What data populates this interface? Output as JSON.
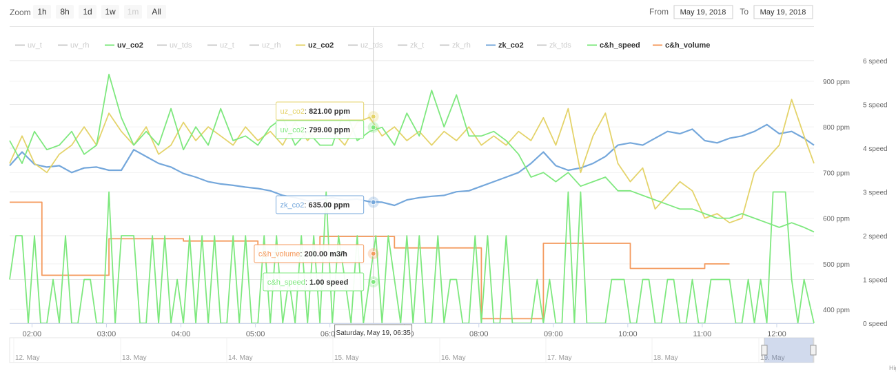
{
  "toolbar": {
    "zoom_label": "Zoom",
    "zoom_buttons": [
      {
        "label": "1h",
        "disabled": false
      },
      {
        "label": "8h",
        "disabled": false
      },
      {
        "label": "1d",
        "disabled": false
      },
      {
        "label": "1w",
        "disabled": false
      },
      {
        "label": "1m",
        "disabled": true
      },
      {
        "label": "All",
        "disabled": false
      }
    ],
    "from_label": "From",
    "from_value": "May 19, 2018",
    "to_label": "To",
    "to_value": "May 19, 2018"
  },
  "credits": "Hig",
  "chart_data": {
    "type": "line",
    "legend_position": "top",
    "grid": true,
    "x_range": [
      "01:42",
      "12:30"
    ],
    "x_ticks": [
      "02:00",
      "03:00",
      "04:00",
      "05:00",
      "06:00",
      "07:00",
      "08:00",
      "09:00",
      "10:00",
      "11:00",
      "12:00"
    ],
    "y_axis_ppm": {
      "range": [
        370,
        945
      ],
      "ticks": [
        "400 ppm",
        "500 ppm",
        "600 ppm",
        "700 ppm",
        "800 ppm",
        "900 ppm"
      ],
      "tick_values": [
        400,
        500,
        600,
        700,
        800,
        900
      ]
    },
    "y_axis_speed": {
      "range": [
        0,
        6
      ],
      "ticks": [
        "0 speed",
        "1 speed",
        "2 speed",
        "3 speed",
        "4 speed",
        "5 speed",
        "6 speed"
      ],
      "tick_values": [
        0,
        1,
        2,
        3,
        4,
        5,
        6
      ]
    },
    "legend": [
      {
        "name": "uv_t",
        "color": "#cccccc",
        "visible": false
      },
      {
        "name": "uv_rh",
        "color": "#cccccc",
        "visible": false
      },
      {
        "name": "uv_co2",
        "color": "#7ee87e",
        "visible": true
      },
      {
        "name": "uv_tds",
        "color": "#cccccc",
        "visible": false
      },
      {
        "name": "uz_t",
        "color": "#cccccc",
        "visible": false
      },
      {
        "name": "uz_rh",
        "color": "#cccccc",
        "visible": false
      },
      {
        "name": "uz_co2",
        "color": "#e4d36a",
        "visible": true
      },
      {
        "name": "uz_tds",
        "color": "#cccccc",
        "visible": false
      },
      {
        "name": "zk_t",
        "color": "#cccccc",
        "visible": false
      },
      {
        "name": "zk_rh",
        "color": "#cccccc",
        "visible": false
      },
      {
        "name": "zk_co2",
        "color": "#74a7db",
        "visible": true
      },
      {
        "name": "zk_tds",
        "color": "#cccccc",
        "visible": false
      },
      {
        "name": "c&h_speed",
        "color": "#7ee87e",
        "visible": true
      },
      {
        "name": "c&h_volume",
        "color": "#f49a5d",
        "visible": true
      }
    ],
    "series": [
      {
        "name": "zk_co2",
        "color": "#74a7db",
        "axis": "ppm",
        "x": [
          "01:42",
          "01:52",
          "02:02",
          "02:12",
          "02:22",
          "02:32",
          "02:42",
          "02:52",
          "03:02",
          "03:12",
          "03:22",
          "03:32",
          "03:42",
          "03:52",
          "04:02",
          "04:12",
          "04:22",
          "04:32",
          "04:42",
          "04:52",
          "05:02",
          "05:12",
          "05:22",
          "05:32",
          "05:42",
          "05:52",
          "06:02",
          "06:12",
          "06:22",
          "06:32",
          "06:42",
          "06:52",
          "07:02",
          "07:12",
          "07:22",
          "07:32",
          "07:42",
          "07:52",
          "08:02",
          "08:12",
          "08:22",
          "08:32",
          "08:42",
          "08:52",
          "09:02",
          "09:12",
          "09:22",
          "09:32",
          "09:42",
          "09:52",
          "10:02",
          "10:12",
          "10:22",
          "10:32",
          "10:42",
          "10:52",
          "11:02",
          "11:12",
          "11:22",
          "11:32",
          "11:42",
          "11:52",
          "12:02",
          "12:12",
          "12:22",
          "12:30"
        ],
        "values": [
          715,
          745,
          718,
          712,
          715,
          700,
          710,
          712,
          705,
          705,
          750,
          735,
          720,
          712,
          698,
          690,
          680,
          675,
          672,
          668,
          665,
          660,
          650,
          645,
          638,
          640,
          645,
          640,
          642,
          636,
          635,
          628,
          640,
          645,
          648,
          650,
          658,
          660,
          670,
          680,
          690,
          700,
          720,
          745,
          715,
          705,
          710,
          720,
          735,
          760,
          765,
          760,
          775,
          790,
          785,
          795,
          770,
          765,
          775,
          780,
          790,
          805,
          785,
          790,
          775,
          760
        ]
      },
      {
        "name": "uv_co2",
        "color": "#7ee87e",
        "axis": "ppm",
        "x": [
          "01:42",
          "01:52",
          "02:02",
          "02:12",
          "02:22",
          "02:32",
          "02:42",
          "02:52",
          "03:02",
          "03:12",
          "03:22",
          "03:32",
          "03:42",
          "03:52",
          "04:02",
          "04:12",
          "04:22",
          "04:32",
          "04:42",
          "04:52",
          "05:02",
          "05:12",
          "05:22",
          "05:32",
          "05:42",
          "05:52",
          "06:02",
          "06:12",
          "06:22",
          "06:32",
          "06:42",
          "06:52",
          "07:02",
          "07:12",
          "07:22",
          "07:32",
          "07:42",
          "07:52",
          "08:02",
          "08:12",
          "08:22",
          "08:32",
          "08:42",
          "08:52",
          "09:02",
          "09:12",
          "09:22",
          "09:32",
          "09:42",
          "09:52",
          "10:02",
          "10:12",
          "10:22",
          "10:32",
          "10:42",
          "10:52",
          "11:02",
          "11:12",
          "11:22",
          "11:32",
          "11:42",
          "11:52",
          "12:02",
          "12:12",
          "12:22",
          "12:30"
        ],
        "values": [
          770,
          720,
          790,
          750,
          760,
          790,
          740,
          760,
          915,
          820,
          760,
          790,
          760,
          840,
          750,
          800,
          760,
          840,
          770,
          780,
          760,
          800,
          820,
          760,
          790,
          760,
          760,
          840,
          770,
          790,
          799,
          760,
          830,
          780,
          880,
          800,
          870,
          780,
          780,
          790,
          770,
          740,
          690,
          700,
          680,
          700,
          670,
          680,
          690,
          660,
          660,
          650,
          640,
          630,
          620,
          620,
          610,
          600,
          600,
          610,
          600,
          590,
          580,
          590,
          580,
          570
        ]
      },
      {
        "name": "uz_co2",
        "color": "#e4d36a",
        "axis": "ppm",
        "x": [
          "01:42",
          "01:52",
          "02:02",
          "02:12",
          "02:22",
          "02:32",
          "02:42",
          "02:52",
          "03:02",
          "03:12",
          "03:22",
          "03:32",
          "03:42",
          "03:52",
          "04:02",
          "04:12",
          "04:22",
          "04:32",
          "04:42",
          "04:52",
          "05:02",
          "05:12",
          "05:22",
          "05:32",
          "05:42",
          "05:52",
          "06:02",
          "06:12",
          "06:22",
          "06:32",
          "06:42",
          "06:52",
          "07:02",
          "07:12",
          "07:22",
          "07:32",
          "07:42",
          "07:52",
          "08:02",
          "08:12",
          "08:22",
          "08:32",
          "08:42",
          "08:52",
          "09:02",
          "09:12",
          "09:22",
          "09:32",
          "09:42",
          "09:52",
          "10:02",
          "10:12",
          "10:22",
          "10:32",
          "10:42",
          "10:52",
          "11:02",
          "11:12",
          "11:22",
          "11:32",
          "11:42",
          "11:52",
          "12:02",
          "12:12",
          "12:22",
          "12:30"
        ],
        "values": [
          720,
          780,
          720,
          700,
          740,
          760,
          800,
          760,
          830,
          790,
          760,
          800,
          740,
          760,
          810,
          770,
          800,
          780,
          760,
          800,
          770,
          790,
          760,
          810,
          770,
          800,
          790,
          760,
          810,
          821,
          780,
          800,
          770,
          790,
          760,
          790,
          770,
          800,
          760,
          780,
          760,
          790,
          770,
          820,
          760,
          840,
          700,
          780,
          830,
          720,
          680,
          710,
          620,
          650,
          680,
          660,
          600,
          610,
          590,
          600,
          700,
          730,
          760,
          860,
          780,
          720
        ]
      },
      {
        "name": "c&h_volume",
        "color": "#f49a5d",
        "axis": "ppm",
        "x": [
          "01:42",
          "02:08",
          "02:08",
          "03:02",
          "03:02",
          "03:12",
          "03:12",
          "04:02",
          "04:02",
          "05:02",
          "05:02",
          "05:12",
          "05:12",
          "05:52",
          "05:52",
          "06:32",
          "06:32",
          "06:52",
          "06:52",
          "07:52",
          "07:52",
          "08:02",
          "08:02",
          "08:52",
          "08:52",
          "09:52",
          "09:52",
          "10:02",
          "10:02",
          "11:02",
          "11:02",
          "11:22"
        ],
        "values": [
          635,
          635,
          475,
          475,
          555,
          555,
          555,
          555,
          550,
          550,
          525,
          525,
          525,
          525,
          560,
          560,
          560,
          560,
          535,
          535,
          535,
          535,
          380,
          380,
          545,
          545,
          545,
          545,
          490,
          490,
          500,
          500
        ]
      },
      {
        "name": "c&h_speed",
        "color": "#7ee87e",
        "axis": "speed",
        "x": [
          "01:42",
          "01:47",
          "01:52",
          "01:57",
          "02:02",
          "02:07",
          "02:12",
          "02:17",
          "02:22",
          "02:27",
          "02:32",
          "02:37",
          "02:42",
          "02:47",
          "02:52",
          "02:57",
          "03:02",
          "03:07",
          "03:12",
          "03:17",
          "03:22",
          "03:27",
          "03:32",
          "03:37",
          "03:42",
          "03:47",
          "03:52",
          "03:57",
          "04:02",
          "04:07",
          "04:12",
          "04:17",
          "04:22",
          "04:27",
          "04:32",
          "04:37",
          "04:42",
          "04:47",
          "04:52",
          "04:57",
          "05:02",
          "05:07",
          "05:12",
          "05:17",
          "05:22",
          "05:27",
          "05:32",
          "05:37",
          "05:42",
          "05:47",
          "05:52",
          "05:57",
          "06:02",
          "06:07",
          "06:12",
          "06:17",
          "06:22",
          "06:27",
          "06:32",
          "06:37",
          "06:42",
          "06:47",
          "06:52",
          "06:57",
          "07:02",
          "07:07",
          "07:12",
          "07:17",
          "07:22",
          "07:27",
          "07:32",
          "07:37",
          "07:42",
          "07:47",
          "07:52",
          "07:57",
          "08:02",
          "08:07",
          "08:12",
          "08:17",
          "08:22",
          "08:27",
          "08:32",
          "08:37",
          "08:42",
          "08:47",
          "08:52",
          "08:57",
          "09:02",
          "09:07",
          "09:12",
          "09:17",
          "09:22",
          "09:27",
          "09:32",
          "09:37",
          "09:42",
          "09:47",
          "09:52",
          "09:57",
          "10:02",
          "10:07",
          "10:12",
          "10:17",
          "10:22",
          "10:27",
          "10:32",
          "10:37",
          "10:42",
          "10:47",
          "10:52",
          "10:57",
          "11:02",
          "11:07",
          "11:12",
          "11:17",
          "11:22",
          "11:27",
          "11:32",
          "11:37",
          "11:42",
          "11:47",
          "11:52",
          "11:57",
          "12:02",
          "12:07",
          "12:12",
          "12:17",
          "12:22",
          "12:30"
        ],
        "values": [
          1,
          2,
          2,
          0,
          2,
          0,
          0,
          1,
          0,
          2,
          0,
          0,
          1,
          1,
          0,
          0,
          3,
          0,
          2,
          2,
          2,
          0,
          0,
          2,
          0,
          2,
          0,
          1,
          0,
          2,
          0,
          2,
          0,
          2,
          0,
          0,
          2,
          0,
          2,
          0,
          0,
          2,
          0,
          2,
          0,
          1,
          0,
          2,
          0,
          2,
          0,
          3,
          0,
          2,
          1,
          0,
          2,
          0,
          1,
          2,
          0,
          2,
          1,
          0,
          2,
          0,
          2,
          0,
          0,
          2,
          0,
          1,
          1,
          0,
          0,
          2,
          0,
          2,
          0,
          0,
          2,
          0,
          0,
          0,
          0,
          1,
          0,
          1,
          0,
          0,
          3,
          0,
          3,
          0,
          0,
          0,
          0,
          1,
          1,
          1,
          0,
          0,
          1,
          1,
          0,
          0,
          1,
          1,
          0,
          0,
          1,
          0,
          0,
          1,
          1,
          1,
          1,
          0,
          0,
          1,
          0,
          1,
          0,
          3,
          3,
          3,
          1,
          0,
          1,
          0
        ]
      }
    ],
    "crosshair_time": "06:35",
    "tooltips": [
      {
        "series": "uz_co2",
        "label": "uz_co2",
        "value": "821.00 ppm",
        "color": "#e4d36a"
      },
      {
        "series": "uv_co2",
        "label": "uv_co2",
        "value": "799.00 ppm",
        "color": "#7ee87e"
      },
      {
        "series": "zk_co2",
        "label": "zk_co2",
        "value": "635.00 ppm",
        "color": "#74a7db"
      },
      {
        "series": "c&h_volume",
        "label": "c&h_volume",
        "value": "200.00 m3/h",
        "color": "#f49a5d"
      },
      {
        "series": "c&h_speed",
        "label": "c&h_speed",
        "value": "1.00 speed",
        "color": "#7ee87e"
      }
    ],
    "crosshair_label": "Saturday, May 19, 06:35",
    "navigator": {
      "ticks": [
        "12. May",
        "13. May",
        "14. May",
        "15. May",
        "16. May",
        "17. May",
        "18. May",
        "19. May"
      ]
    }
  }
}
